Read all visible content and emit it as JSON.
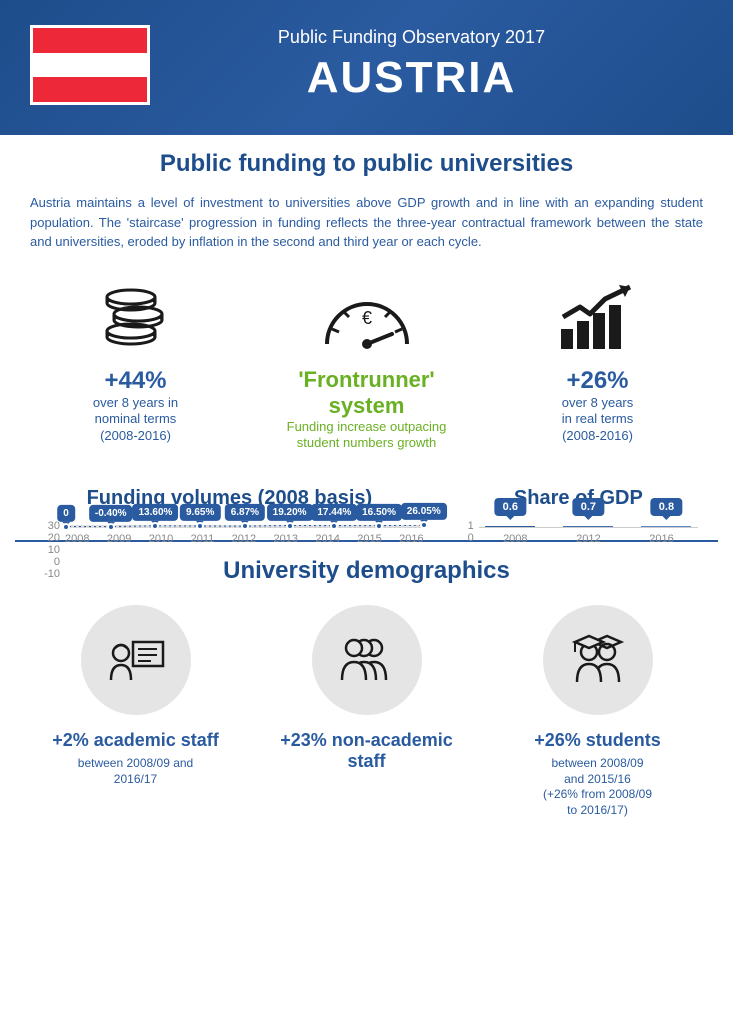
{
  "colors": {
    "primary_blue": "#1e4d8b",
    "accent_blue": "#2a5ba0",
    "green": "#6ab023",
    "text_dark": "#1a1a1a",
    "flag_red": "#ed2939",
    "flag_white": "#ffffff",
    "bar1": "#2a5ba0",
    "bar2": "#4472b5",
    "bar3": "#5a86c2"
  },
  "header": {
    "subtitle": "Public Funding Observatory 2017",
    "title": "AUSTRIA"
  },
  "section1": {
    "title": "Public funding to public universities",
    "intro": "Austria maintains a level of investment to universities above GDP growth and in line with an expanding student population. The 'staircase' progression in funding reflects the three-year contractual framework between the state and universities, eroded by inflation in the second and third year or each cycle.",
    "stats": [
      {
        "value": "+44%",
        "line1": "over 8 years in",
        "line2": "nominal terms",
        "line3": "(2008-2016)",
        "color_key": "accent_blue"
      },
      {
        "value": "'Frontrunner' system",
        "line1": "Funding increase outpacing",
        "line2": "student numbers growth",
        "line3": "",
        "color_key": "green"
      },
      {
        "value": "+26%",
        "line1": "over 8 years",
        "line2": "in real terms",
        "line3": "(2008-2016)",
        "color_key": "accent_blue"
      }
    ]
  },
  "funding_chart": {
    "title": "Funding volumes (2008 basis)",
    "title_color": "#1e4d8b",
    "ylim": [
      -10,
      30
    ],
    "yticks": [
      "30",
      "20",
      "10",
      "0",
      "-10"
    ],
    "years": [
      "2008",
      "2009",
      "2010",
      "2011",
      "2012",
      "2013",
      "2014",
      "2015",
      "2016"
    ],
    "values": [
      0,
      -0.4,
      13.6,
      9.65,
      6.87,
      19.2,
      17.44,
      16.5,
      26.05
    ],
    "labels": [
      "0",
      "-0.40%",
      "13.60%",
      "9.65%",
      "6.87%",
      "19.20%",
      "17.44%",
      "16.50%",
      "26.05%"
    ],
    "area_fill": "#cad9ee",
    "line_color": "#2a5ba0"
  },
  "gdp_chart": {
    "title": "Share of GDP",
    "title_color": "#1e4d8b",
    "ylim": [
      0,
      1
    ],
    "yticks": [
      "1",
      "0"
    ],
    "years": [
      "2008",
      "2012",
      "2016"
    ],
    "values": [
      0.6,
      0.7,
      0.8
    ],
    "labels": [
      "0.6",
      "0.7",
      "0.8"
    ],
    "bar_colors": [
      "#2a5ba0",
      "#4472b5",
      "#5a86c2"
    ]
  },
  "demographics": {
    "title": "University demographics",
    "title_color": "#1e4d8b",
    "items": [
      {
        "value": "+2% academic staff",
        "sub1": "between 2008/09 and",
        "sub2": "2016/17",
        "sub3": "",
        "sub4": ""
      },
      {
        "value": "+23% non-academic staff",
        "sub1": "",
        "sub2": "",
        "sub3": "",
        "sub4": ""
      },
      {
        "value": "+26% students",
        "sub1": "between 2008/09",
        "sub2": "and 2015/16",
        "sub3": "(+26% from 2008/09",
        "sub4": "to 2016/17)"
      }
    ]
  }
}
